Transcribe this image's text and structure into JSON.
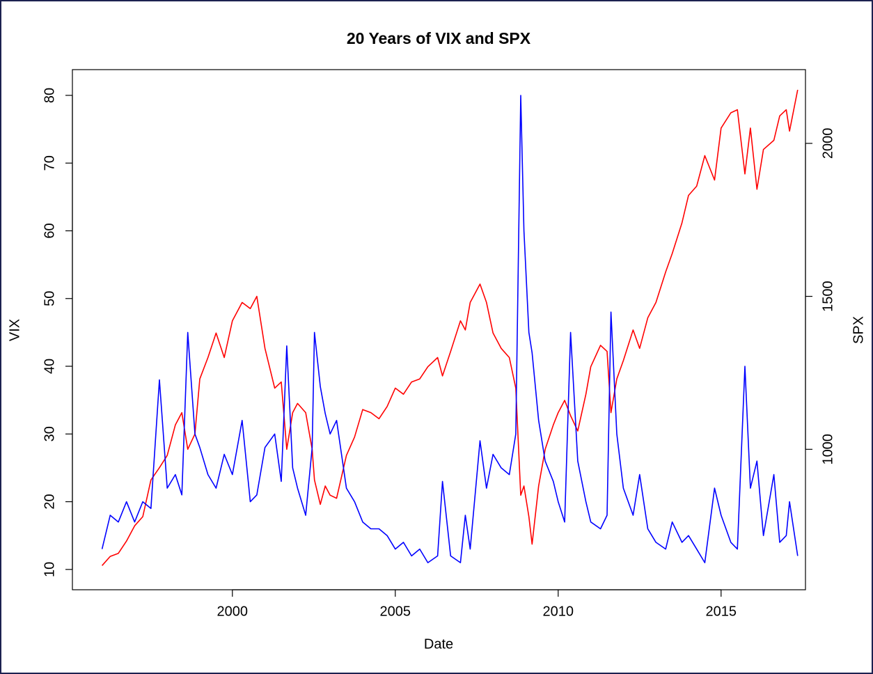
{
  "chart_data": {
    "type": "line",
    "title": "20 Years of VIX and SPX",
    "xlabel": "Date",
    "ylabel": "VIX",
    "y2label": "SPX",
    "xlim": [
      1995.09,
      2017.59
    ],
    "xticks": [
      2000,
      2005,
      2010,
      2015
    ],
    "ylim": [
      7.0,
      83.8
    ],
    "yticks": [
      10,
      20,
      30,
      40,
      50,
      60,
      70,
      80
    ],
    "y2lim": [
      541,
      2241
    ],
    "y2ticks": [
      1000,
      1500,
      2000
    ],
    "grid": false,
    "x": [
      1996.0,
      1996.25,
      1996.5,
      1996.75,
      1997.0,
      1997.25,
      1997.5,
      1997.76,
      1998.0,
      1998.25,
      1998.45,
      1998.63,
      1998.85,
      1999.0,
      1999.25,
      1999.5,
      1999.75,
      2000.0,
      2000.3,
      2000.55,
      2000.75,
      2001.0,
      2001.3,
      2001.5,
      2001.67,
      2001.85,
      2002.0,
      2002.25,
      2002.45,
      2002.52,
      2002.7,
      2002.85,
      2003.0,
      2003.2,
      2003.5,
      2003.75,
      2004.0,
      2004.25,
      2004.5,
      2004.75,
      2005.0,
      2005.25,
      2005.5,
      2005.75,
      2006.0,
      2006.3,
      2006.45,
      2006.7,
      2007.0,
      2007.15,
      2007.3,
      2007.6,
      2007.8,
      2008.0,
      2008.25,
      2008.5,
      2008.7,
      2008.85,
      2008.95,
      2009.1,
      2009.2,
      2009.4,
      2009.6,
      2009.85,
      2010.0,
      2010.2,
      2010.38,
      2010.6,
      2010.85,
      2011.0,
      2011.3,
      2011.5,
      2011.62,
      2011.8,
      2012.0,
      2012.3,
      2012.5,
      2012.75,
      2013.0,
      2013.3,
      2013.5,
      2013.8,
      2014.0,
      2014.25,
      2014.5,
      2014.8,
      2015.0,
      2015.3,
      2015.5,
      2015.73,
      2015.9,
      2016.1,
      2016.3,
      2016.62,
      2016.8,
      2017.0,
      2017.1,
      2017.35
    ],
    "series": [
      {
        "name": "VIX",
        "color": "#0000ff",
        "axis": "y",
        "values": [
          13,
          18,
          17,
          20,
          17,
          20,
          19,
          38,
          22,
          24,
          21,
          45,
          30,
          28,
          24,
          22,
          27,
          24,
          32,
          20,
          21,
          28,
          30,
          23,
          43,
          25,
          22,
          18,
          28,
          45,
          37,
          33,
          30,
          32,
          22,
          20,
          17,
          16,
          16,
          15,
          13,
          14,
          12,
          13,
          11,
          12,
          23,
          12,
          11,
          18,
          13,
          29,
          22,
          27,
          25,
          24,
          30,
          80,
          60,
          45,
          42,
          32,
          26,
          23,
          20,
          17,
          45,
          26,
          20,
          17,
          16,
          18,
          48,
          30,
          22,
          18,
          24,
          16,
          14,
          13,
          17,
          14,
          15,
          13,
          11,
          22,
          18,
          14,
          13,
          40,
          22,
          26,
          15,
          24,
          14,
          15,
          20,
          12
        ]
      },
      {
        "name": "SPX",
        "color": "#ff0000",
        "axis": "y2",
        "values": [
          620,
          650,
          660,
          700,
          750,
          780,
          900,
          940,
          980,
          1080,
          1120,
          1000,
          1050,
          1230,
          1300,
          1380,
          1300,
          1420,
          1480,
          1460,
          1500,
          1330,
          1200,
          1220,
          1000,
          1120,
          1150,
          1120,
          1000,
          900,
          820,
          880,
          850,
          840,
          980,
          1040,
          1130,
          1120,
          1100,
          1140,
          1200,
          1180,
          1220,
          1230,
          1270,
          1300,
          1240,
          1320,
          1420,
          1390,
          1480,
          1540,
          1480,
          1380,
          1330,
          1300,
          1200,
          850,
          880,
          780,
          690,
          880,
          1000,
          1080,
          1120,
          1160,
          1110,
          1060,
          1180,
          1270,
          1340,
          1320,
          1120,
          1230,
          1290,
          1390,
          1330,
          1430,
          1480,
          1580,
          1640,
          1740,
          1830,
          1860,
          1960,
          1880,
          2050,
          2100,
          2110,
          1900,
          2050,
          1850,
          1980,
          2010,
          2090,
          2110,
          2040,
          2175
        ]
      }
    ]
  }
}
